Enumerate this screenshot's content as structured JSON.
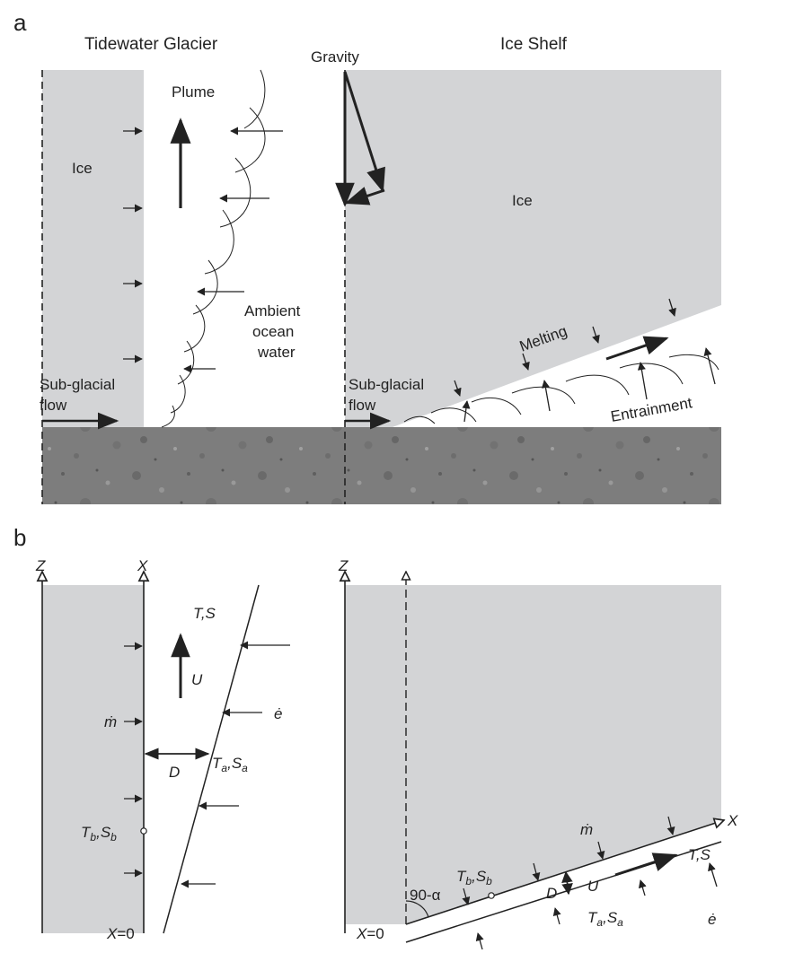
{
  "panel_a": {
    "letter": "a",
    "left_title": "Tidewater Glacier",
    "right_title": "Ice Shelf",
    "gravity": "Gravity",
    "plume": "Plume",
    "ice_left": "Ice",
    "ice_right": "Ice",
    "ambient": [
      "Ambient",
      "ocean",
      "water"
    ],
    "subglacial_left": [
      "Sub-glacial",
      "flow"
    ],
    "subglacial_right": [
      "Sub-glacial",
      "flow"
    ],
    "melting": "Melting",
    "entrainment": "Entrainment"
  },
  "panel_b": {
    "letter": "b",
    "left": {
      "z_axis": "Z",
      "x_axis": "X",
      "ts": "T,S",
      "u": "U",
      "e_dot": "ė",
      "m_dot": "ṁ",
      "d": "D",
      "ta": "T",
      "ta_sub": "a",
      "sa": "S",
      "sa_sub": "a",
      "tb": "T",
      "tb_sub": "b",
      "sb": "S",
      "sb_sub": "b",
      "x0_var": "X",
      "x0_val": "=0"
    },
    "right": {
      "z_axis": "Z",
      "x_axis": "X",
      "ts": "T,S",
      "u": "U",
      "e_dot": "ė",
      "m_dot": "ṁ",
      "d": "D",
      "angle": "90-α",
      "ta": "T",
      "ta_sub": "a",
      "sa": "S",
      "sa_sub": "a",
      "tb": "T",
      "tb_sub": "b",
      "sb": "S",
      "sb_sub": "b",
      "x0_var": "X",
      "x0_val": "=0"
    }
  },
  "colors": {
    "ice": "#d3d4d6",
    "seabed": "#7d7d7d",
    "ink": "#222222"
  }
}
